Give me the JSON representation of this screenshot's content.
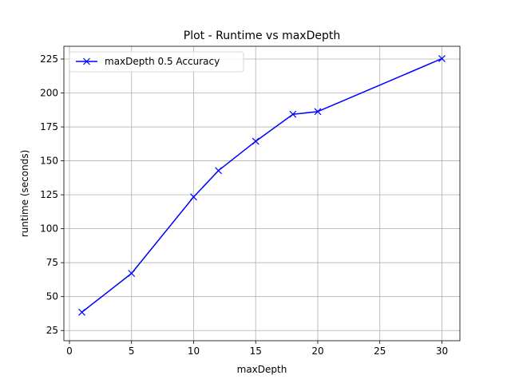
{
  "chart_data": {
    "type": "line",
    "title": "Plot - Runtime vs maxDepth",
    "xlabel": "maxDepth",
    "ylabel": "runtime (seconds)",
    "xlim": [
      -0.45,
      31.45
    ],
    "ylim": [
      17.5,
      234.4
    ],
    "x_ticks": [
      0,
      5,
      10,
      15,
      20,
      25,
      30
    ],
    "y_ticks": [
      25,
      50,
      75,
      100,
      125,
      150,
      175,
      200,
      225
    ],
    "grid": true,
    "legend_position": "upper left",
    "series": [
      {
        "name": "maxDepth 0.5 Accuracy",
        "color": "#0000ff",
        "marker": "x",
        "x": [
          1,
          5,
          10,
          12,
          15,
          18,
          20,
          30
        ],
        "y": [
          38.5,
          67.1,
          123.4,
          142.8,
          164.4,
          184.3,
          186.3,
          225.3
        ]
      }
    ]
  }
}
